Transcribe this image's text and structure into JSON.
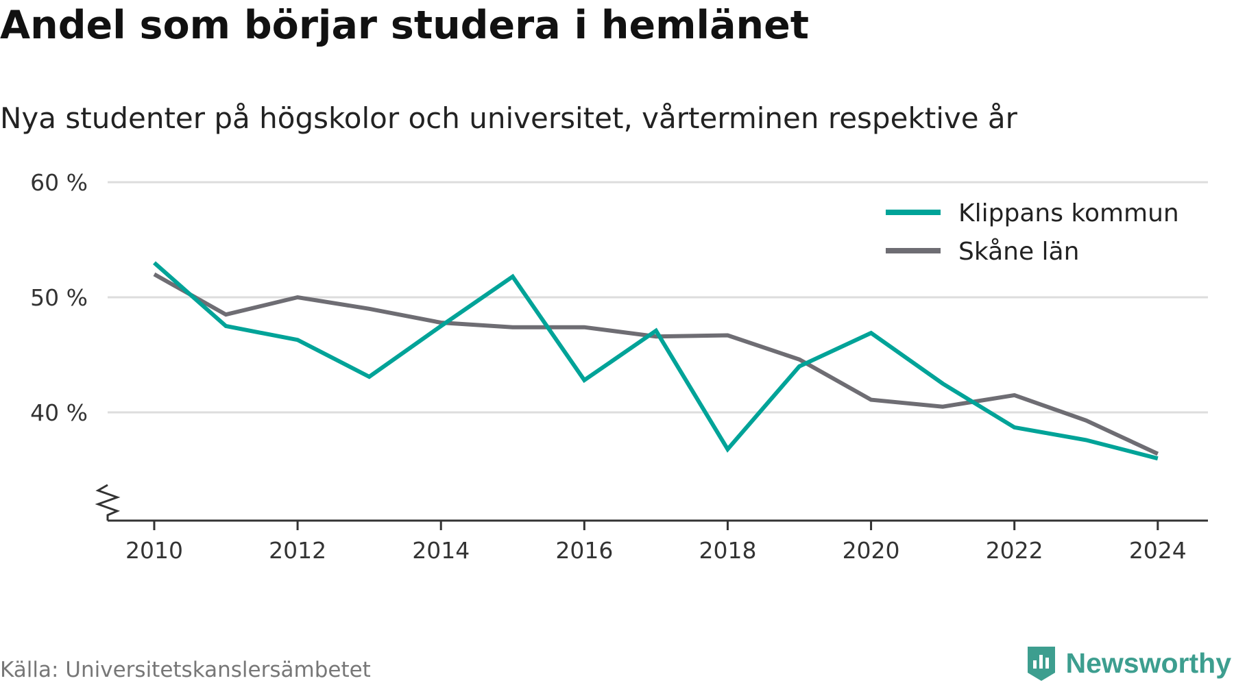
{
  "header": {
    "title": "Andel som börjar studera i hemlänet",
    "subtitle": "Nya studenter på högskolor och universitet, vårterminen respektive år"
  },
  "footer": {
    "source": "Källa: Universitetskanslersämbetet",
    "brand": "Newsworthy",
    "brand_icon": "newsworthy-logo-icon"
  },
  "colors": {
    "klippan": "#00a398",
    "skane": "#6e6d73",
    "grid": "#dddddd",
    "axis": "#333333",
    "brand": "#3d9e8f"
  },
  "chart_data": {
    "type": "line",
    "title": "Andel som börjar studera i hemlänet",
    "subtitle": "Nya studenter på högskolor och universitet, vårterminen respektive år",
    "x": [
      2010,
      2011,
      2012,
      2013,
      2014,
      2015,
      2016,
      2017,
      2018,
      2019,
      2020,
      2021,
      2022,
      2023,
      2024
    ],
    "series": [
      {
        "name": "Klippans kommun",
        "color": "#00a398",
        "values": [
          53.0,
          47.5,
          46.3,
          43.1,
          47.5,
          51.8,
          42.8,
          47.1,
          36.8,
          44.0,
          46.9,
          42.5,
          38.7,
          37.6,
          36.0
        ]
      },
      {
        "name": "Skåne län",
        "color": "#6e6d73",
        "values": [
          52.0,
          48.5,
          50.0,
          49.0,
          47.8,
          47.4,
          47.4,
          46.6,
          46.7,
          44.6,
          41.1,
          40.5,
          41.5,
          39.3,
          36.4
        ]
      }
    ],
    "ylim": [
      30.6,
      60
    ],
    "yticks": [
      40,
      50,
      60
    ],
    "ytick_labels": [
      "40 %",
      "50 %",
      "60 %"
    ],
    "xticks": [
      2010,
      2012,
      2014,
      2016,
      2018,
      2020,
      2022,
      2024
    ],
    "xtick_labels": [
      "2010",
      "2012",
      "2014",
      "2016",
      "2018",
      "2020",
      "2022",
      "2024"
    ],
    "xlim": [
      2009.35,
      2024.7
    ],
    "y_axis_break": true,
    "grid": true,
    "legend_position": "top-right"
  }
}
